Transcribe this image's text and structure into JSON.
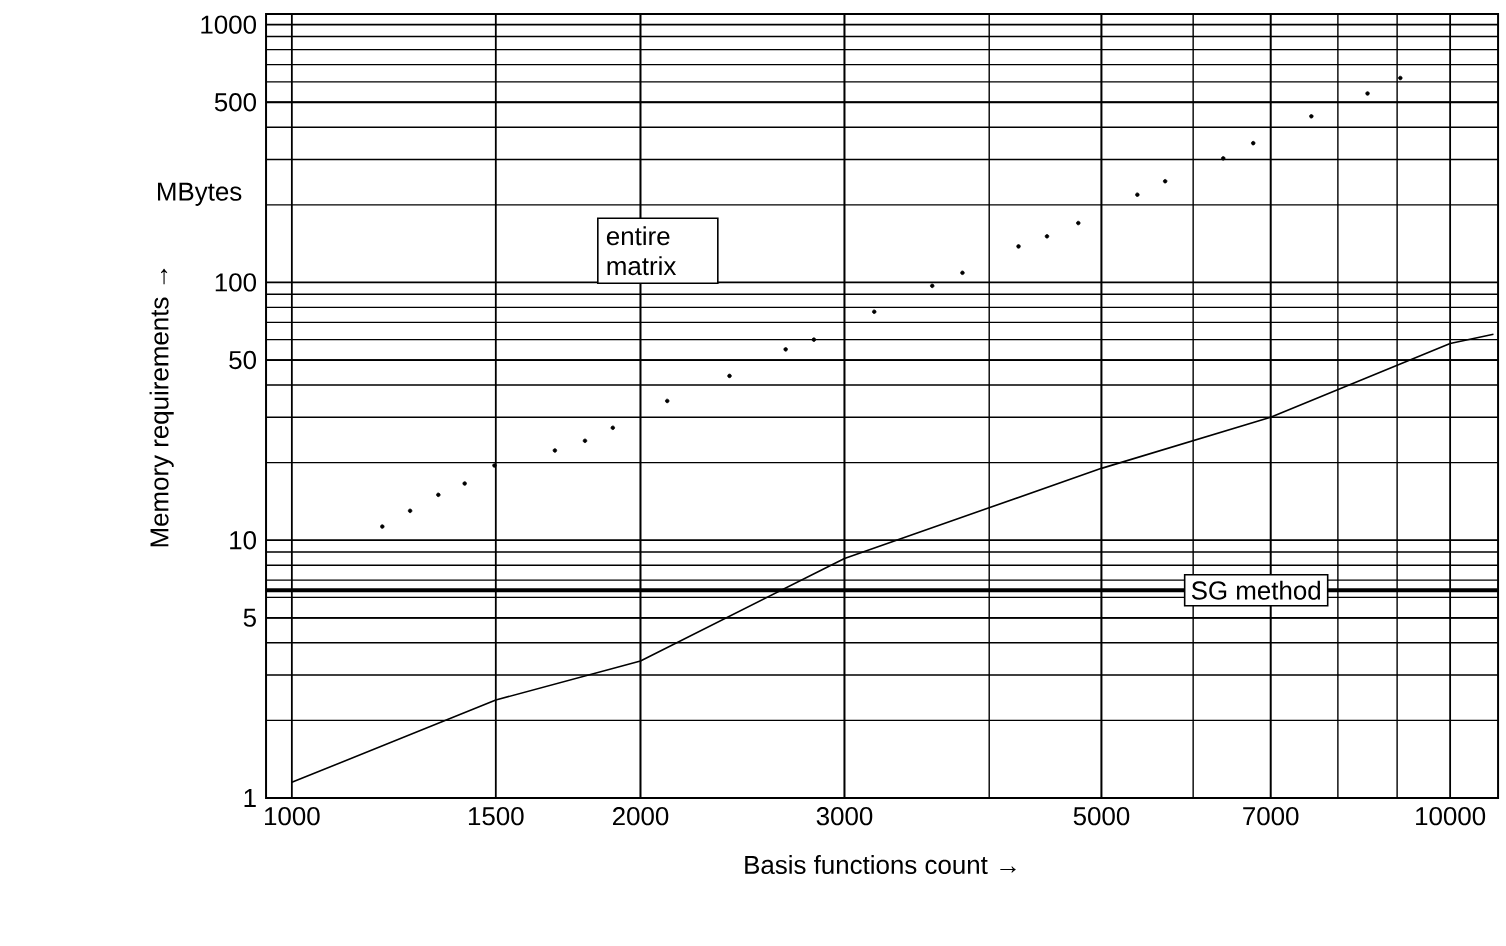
{
  "chart_data": {
    "type": "line",
    "xlabel": "Basis functions count →",
    "ylabel": "Memory requirements →",
    "log": "xy",
    "grid": true,
    "xlim": [
      950,
      11000
    ],
    "ylim": [
      1,
      1100
    ],
    "xticks": [
      1000,
      1500,
      2000,
      3000,
      5000,
      7000,
      10000
    ],
    "yticks": [
      1,
      5,
      10,
      50,
      100,
      500,
      1000
    ],
    "series": [
      {
        "type": "scatter",
        "marker": "circle",
        "color": "#000000",
        "x": [
          1197,
          1265,
          1338,
          1410,
          1496,
          1687,
          1791,
          1893,
          2109,
          2387,
          2669,
          2823,
          3183,
          3572,
          3793,
          4240,
          4487,
          4775,
          5370,
          5675,
          6370,
          6761,
          7590,
          8486,
          9057
        ],
        "values": [
          11.3,
          13.0,
          15.0,
          16.6,
          19.5,
          22.3,
          24.3,
          27.3,
          34.7,
          43.4,
          55,
          60,
          77,
          97,
          109,
          138,
          151,
          170,
          219,
          247,
          303,
          347,
          441,
          541,
          621
        ]
      },
      {
        "color": "#000000",
        "x": [
          1000,
          1500,
          2000,
          3000,
          5000,
          7000,
          10000,
          10900
        ],
        "values": [
          1.15,
          2.4,
          3.4,
          8.5,
          19,
          30,
          58,
          63
        ]
      }
    ],
    "ref_lines": [
      {
        "axis": "y",
        "value": 6.4,
        "label": "SG method"
      }
    ],
    "annotations": [
      "entire matrix",
      "MBytes"
    ]
  }
}
